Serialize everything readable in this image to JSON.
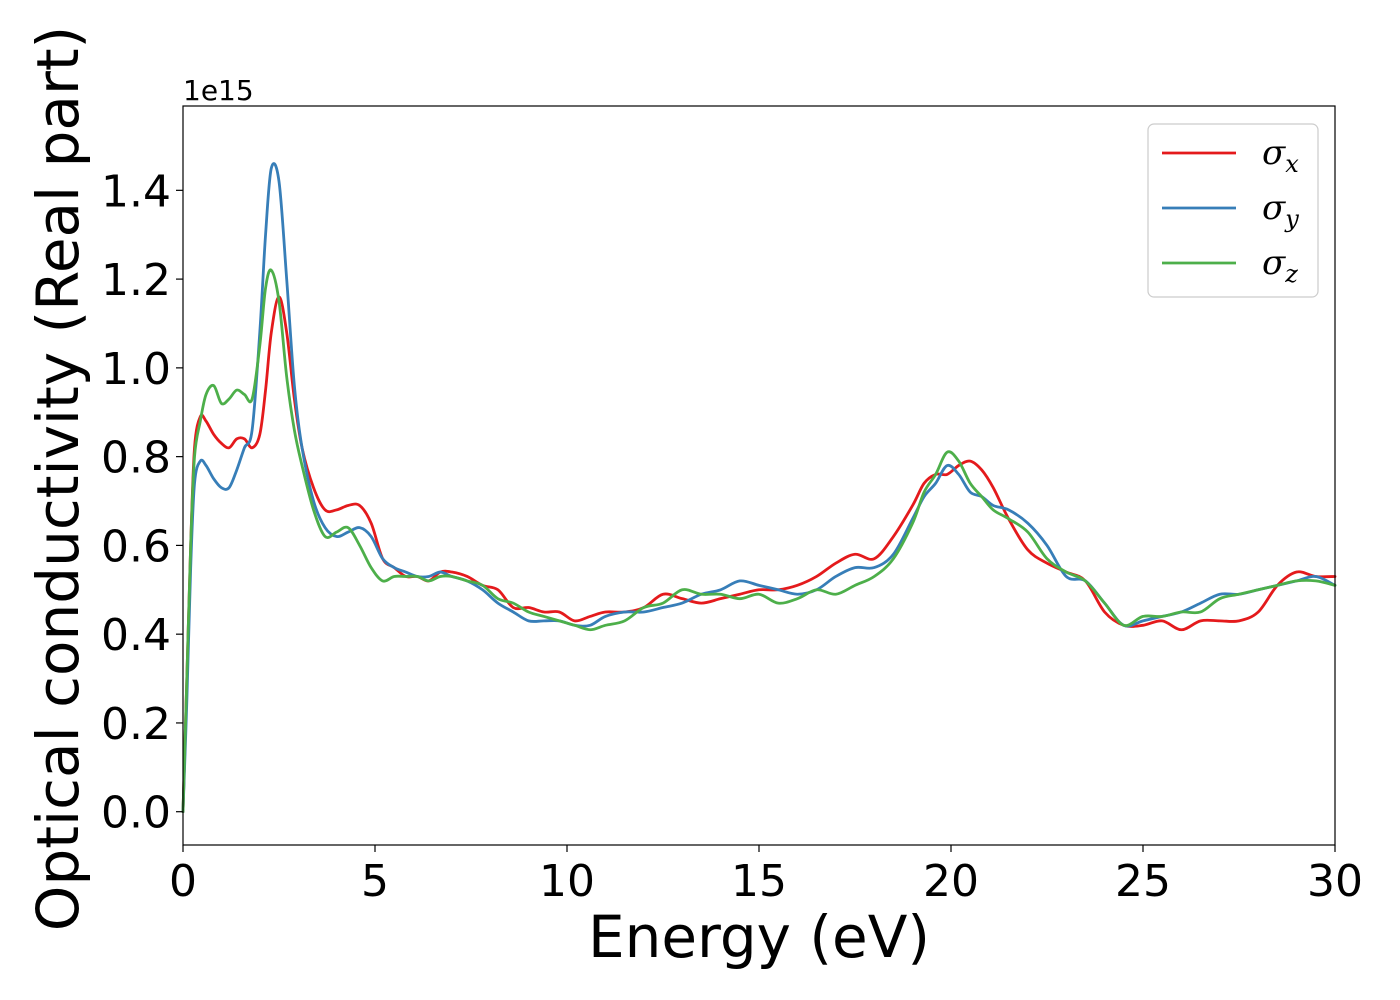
{
  "chart_data": {
    "type": "line",
    "title": "",
    "xlabel": "Energy (eV)",
    "ylabel": "Optical conductivity (Real part)",
    "y_offset_label": "1e15",
    "xlim": [
      0,
      30
    ],
    "ylim": [
      -0.075,
      1.59
    ],
    "x_ticks": [
      0,
      5,
      10,
      15,
      20,
      25,
      30
    ],
    "x_tick_labels": [
      "0",
      "5",
      "10",
      "15",
      "20",
      "25",
      "30"
    ],
    "y_ticks": [
      0.0,
      0.2,
      0.4,
      0.6,
      0.8,
      1.0,
      1.2,
      1.4
    ],
    "y_tick_labels": [
      "0.0",
      "0.2",
      "0.4",
      "0.6",
      "0.8",
      "1.0",
      "1.2",
      "1.4"
    ],
    "grid": false,
    "legend_position": "top-right",
    "series": [
      {
        "name": "σx",
        "legend_symbol": "σ",
        "legend_subscript": "x",
        "color": "#e41a1c",
        "x": [
          0,
          0.1,
          0.2,
          0.3,
          0.45,
          0.6,
          0.8,
          1.0,
          1.2,
          1.4,
          1.6,
          1.8,
          2.0,
          2.15,
          2.3,
          2.5,
          2.7,
          2.9,
          3.1,
          3.4,
          3.7,
          4.0,
          4.3,
          4.6,
          4.9,
          5.2,
          5.5,
          5.8,
          6.1,
          6.4,
          6.7,
          7.0,
          7.4,
          7.8,
          8.2,
          8.6,
          9.0,
          9.4,
          9.8,
          10.2,
          10.6,
          11.0,
          11.5,
          12.0,
          12.5,
          13.0,
          13.5,
          14.0,
          14.5,
          15.0,
          15.5,
          16.0,
          16.5,
          17.0,
          17.5,
          18.0,
          18.5,
          19.0,
          19.3,
          19.6,
          19.9,
          20.2,
          20.5,
          20.8,
          21.1,
          21.5,
          22.0,
          22.5,
          23.0,
          23.5,
          24.0,
          24.5,
          25.0,
          25.5,
          26.0,
          26.5,
          27.0,
          27.5,
          28.0,
          28.5,
          29.0,
          29.5,
          30.0
        ],
        "y": [
          0.0,
          0.3,
          0.6,
          0.82,
          0.89,
          0.88,
          0.85,
          0.83,
          0.82,
          0.84,
          0.84,
          0.82,
          0.85,
          0.95,
          1.08,
          1.16,
          1.08,
          0.93,
          0.82,
          0.73,
          0.68,
          0.68,
          0.69,
          0.69,
          0.65,
          0.57,
          0.55,
          0.53,
          0.53,
          0.52,
          0.54,
          0.54,
          0.53,
          0.51,
          0.5,
          0.46,
          0.46,
          0.45,
          0.45,
          0.43,
          0.44,
          0.45,
          0.45,
          0.46,
          0.49,
          0.48,
          0.47,
          0.48,
          0.49,
          0.5,
          0.5,
          0.51,
          0.53,
          0.56,
          0.58,
          0.57,
          0.62,
          0.69,
          0.74,
          0.76,
          0.76,
          0.78,
          0.79,
          0.77,
          0.73,
          0.66,
          0.59,
          0.56,
          0.54,
          0.52,
          0.45,
          0.42,
          0.42,
          0.43,
          0.41,
          0.43,
          0.43,
          0.43,
          0.45,
          0.51,
          0.54,
          0.53,
          0.53
        ]
      },
      {
        "name": "σy",
        "legend_symbol": "σ",
        "legend_subscript": "y",
        "color": "#377eb8",
        "x": [
          0,
          0.1,
          0.2,
          0.3,
          0.45,
          0.6,
          0.8,
          1.0,
          1.2,
          1.4,
          1.6,
          1.8,
          2.0,
          2.15,
          2.3,
          2.5,
          2.7,
          2.9,
          3.1,
          3.4,
          3.7,
          4.0,
          4.3,
          4.6,
          4.9,
          5.2,
          5.5,
          5.8,
          6.1,
          6.4,
          6.7,
          7.0,
          7.4,
          7.8,
          8.2,
          8.6,
          9.0,
          9.4,
          9.8,
          10.2,
          10.6,
          11.0,
          11.5,
          12.0,
          12.5,
          13.0,
          13.5,
          14.0,
          14.5,
          15.0,
          15.5,
          16.0,
          16.5,
          17.0,
          17.5,
          18.0,
          18.5,
          19.0,
          19.3,
          19.6,
          19.9,
          20.2,
          20.5,
          20.8,
          21.1,
          21.5,
          22.0,
          22.5,
          23.0,
          23.5,
          24.0,
          24.5,
          25.0,
          25.5,
          26.0,
          26.5,
          27.0,
          27.5,
          28.0,
          28.5,
          29.0,
          29.5,
          30.0
        ],
        "y": [
          0.0,
          0.25,
          0.55,
          0.74,
          0.79,
          0.78,
          0.75,
          0.73,
          0.73,
          0.77,
          0.82,
          0.86,
          1.08,
          1.3,
          1.45,
          1.42,
          1.2,
          0.96,
          0.82,
          0.7,
          0.64,
          0.62,
          0.63,
          0.64,
          0.62,
          0.57,
          0.55,
          0.54,
          0.53,
          0.53,
          0.54,
          0.53,
          0.52,
          0.5,
          0.47,
          0.45,
          0.43,
          0.43,
          0.43,
          0.42,
          0.42,
          0.44,
          0.45,
          0.45,
          0.46,
          0.47,
          0.49,
          0.5,
          0.52,
          0.51,
          0.5,
          0.49,
          0.5,
          0.53,
          0.55,
          0.55,
          0.58,
          0.66,
          0.71,
          0.74,
          0.78,
          0.76,
          0.72,
          0.71,
          0.69,
          0.68,
          0.65,
          0.6,
          0.53,
          0.52,
          0.47,
          0.42,
          0.43,
          0.44,
          0.45,
          0.47,
          0.49,
          0.49,
          0.5,
          0.51,
          0.52,
          0.53,
          0.51
        ]
      },
      {
        "name": "σz",
        "legend_symbol": "σ",
        "legend_subscript": "z",
        "color": "#4daf4a",
        "x": [
          0,
          0.1,
          0.2,
          0.3,
          0.45,
          0.6,
          0.8,
          1.0,
          1.2,
          1.4,
          1.6,
          1.8,
          2.0,
          2.15,
          2.3,
          2.5,
          2.7,
          2.9,
          3.1,
          3.4,
          3.7,
          4.0,
          4.3,
          4.6,
          4.9,
          5.2,
          5.5,
          5.8,
          6.1,
          6.4,
          6.7,
          7.0,
          7.4,
          7.8,
          8.2,
          8.6,
          9.0,
          9.4,
          9.8,
          10.2,
          10.6,
          11.0,
          11.5,
          12.0,
          12.5,
          13.0,
          13.5,
          14.0,
          14.5,
          15.0,
          15.5,
          16.0,
          16.5,
          17.0,
          17.5,
          18.0,
          18.5,
          19.0,
          19.3,
          19.6,
          19.9,
          20.2,
          20.5,
          20.8,
          21.1,
          21.5,
          22.0,
          22.5,
          23.0,
          23.5,
          24.0,
          24.5,
          25.0,
          25.5,
          26.0,
          26.5,
          27.0,
          27.5,
          28.0,
          28.5,
          29.0,
          29.5,
          30.0
        ],
        "y": [
          0.0,
          0.3,
          0.6,
          0.8,
          0.88,
          0.94,
          0.96,
          0.92,
          0.93,
          0.95,
          0.94,
          0.93,
          1.05,
          1.18,
          1.22,
          1.15,
          0.98,
          0.86,
          0.78,
          0.68,
          0.62,
          0.63,
          0.64,
          0.6,
          0.55,
          0.52,
          0.53,
          0.53,
          0.53,
          0.52,
          0.53,
          0.53,
          0.52,
          0.51,
          0.48,
          0.47,
          0.45,
          0.44,
          0.43,
          0.42,
          0.41,
          0.42,
          0.43,
          0.46,
          0.47,
          0.5,
          0.49,
          0.49,
          0.48,
          0.49,
          0.47,
          0.48,
          0.5,
          0.49,
          0.51,
          0.53,
          0.57,
          0.65,
          0.72,
          0.76,
          0.81,
          0.79,
          0.74,
          0.71,
          0.68,
          0.66,
          0.63,
          0.57,
          0.54,
          0.52,
          0.47,
          0.42,
          0.44,
          0.44,
          0.45,
          0.45,
          0.48,
          0.49,
          0.5,
          0.51,
          0.52,
          0.52,
          0.51
        ]
      }
    ]
  }
}
